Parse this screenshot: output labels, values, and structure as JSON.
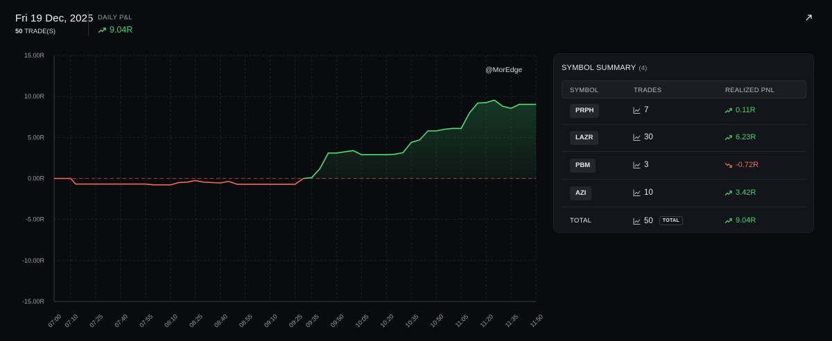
{
  "header": {
    "date": "Fri 19 Dec, 2025",
    "trades_count": "50",
    "trades_unit": "TRADE(S)",
    "pnl_label": "DAILY P&L",
    "pnl_value": "9.04R"
  },
  "colors": {
    "background": "#0a0b0f",
    "positive": "#3fd46f",
    "negative": "#f26a5a",
    "panel": "#14151b"
  },
  "icons": {
    "expand": "arrow-up-right-icon",
    "trend_up": "trend-up-icon",
    "trend_down": "trend-down-icon",
    "trades": "line-chart-icon"
  },
  "watermark": "@MorEdge",
  "chart_data": {
    "type": "area",
    "ylim": [
      -15,
      15
    ],
    "y_ticks": [
      "15.00R",
      "10.00R",
      "5.00R",
      "0.00R",
      "-5.00R",
      "-10.00R",
      "-15.00R"
    ],
    "x_ticks": [
      "07:00",
      "07:10",
      "07:25",
      "07:40",
      "07:55",
      "08:10",
      "08:25",
      "08:40",
      "08:55",
      "09:10",
      "09:25",
      "09:35",
      "09:50",
      "10:05",
      "10:20",
      "10:35",
      "10:50",
      "11:05",
      "11:20",
      "11:35",
      "11:50"
    ],
    "grid": true,
    "baseline": 0,
    "series": [
      {
        "x": [
          "07:00",
          "07:10",
          "07:13",
          "07:25",
          "07:40",
          "07:55",
          "08:00",
          "08:10",
          "08:15",
          "08:20",
          "08:25",
          "08:30",
          "08:40",
          "08:45",
          "08:50",
          "08:55",
          "09:10",
          "09:20",
          "09:25",
          "09:30",
          "09:35",
          "09:40",
          "09:45",
          "09:50",
          "10:00",
          "10:05",
          "10:10",
          "10:20",
          "10:25",
          "10:30",
          "10:35",
          "10:40",
          "10:45",
          "10:50",
          "10:55",
          "11:00",
          "11:05",
          "11:10",
          "11:15",
          "11:20",
          "11:25",
          "11:30",
          "11:35",
          "11:40",
          "11:45",
          "11:50"
        ],
        "y": [
          0,
          0,
          -0.68,
          -0.68,
          -0.68,
          -0.68,
          -0.78,
          -0.78,
          -0.5,
          -0.45,
          -0.25,
          -0.45,
          -0.55,
          -0.35,
          -0.7,
          -0.7,
          -0.7,
          -0.7,
          -0.7,
          0.0,
          0.1,
          1.2,
          3.1,
          3.1,
          3.4,
          2.9,
          2.9,
          2.9,
          2.95,
          3.15,
          4.4,
          4.7,
          5.8,
          5.8,
          6.0,
          6.1,
          6.1,
          8.0,
          9.2,
          9.25,
          9.55,
          8.8,
          8.55,
          9.04,
          9.04,
          9.04
        ]
      }
    ]
  },
  "summary": {
    "title": "SYMBOL SUMMARY",
    "count": "(4)",
    "columns": {
      "symbol": "SYMBOL",
      "trades": "TRADES",
      "pnl": "REALIZED PNL"
    },
    "rows": [
      {
        "symbol": "PRPH",
        "trades": "7",
        "pnl": "0.11R",
        "positive": true
      },
      {
        "symbol": "LAZR",
        "trades": "30",
        "pnl": "6.23R",
        "positive": true
      },
      {
        "symbol": "PBM",
        "trades": "3",
        "pnl": "-0.72R",
        "positive": false
      },
      {
        "symbol": "AZI",
        "trades": "10",
        "pnl": "3.42R",
        "positive": true
      }
    ],
    "total": {
      "label": "TOTAL",
      "trades": "50",
      "badge": "TOTAL",
      "pnl": "9.04R"
    }
  }
}
